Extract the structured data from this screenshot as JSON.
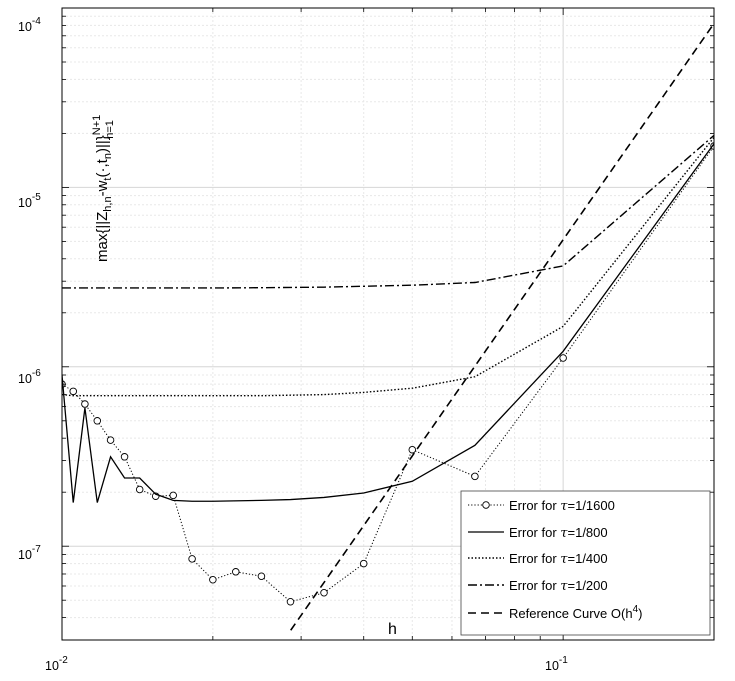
{
  "chart_data": {
    "type": "line",
    "xscale": "log",
    "yscale": "log",
    "xlim": [
      0.01,
      0.2
    ],
    "ylim": [
      3e-08,
      0.0001
    ],
    "grid": true,
    "xlabel": "h",
    "ylabel": "max{||Z_{h,n} - w_t(·,t_n)||}_{n=1}^{N+1}",
    "ylabel_parts": {
      "main": "max{||Z",
      "sub1": "h,n",
      "mid1": "-w",
      "sub2": "t",
      "mid2": "(·,t",
      "sub3": "n",
      "mid3": ")||}",
      "sup": "N+1",
      "sub4": "n=1"
    },
    "x_ticks": [
      {
        "base": "10",
        "exp": "-2"
      },
      {
        "base": "10",
        "exp": "-1"
      }
    ],
    "y_ticks": [
      {
        "base": "10",
        "exp": "-7"
      },
      {
        "base": "10",
        "exp": "-6"
      },
      {
        "base": "10",
        "exp": "-5"
      },
      {
        "base": "10",
        "exp": "-4"
      }
    ],
    "legend_position": "bottom-right",
    "series": [
      {
        "name": "Error for τ=1/1600",
        "label_prefix": "Error for ",
        "label_tau": "τ",
        "label_suffix": "=1/1600",
        "style": "dotted-circle",
        "x": [
          0.01,
          0.01053,
          0.01111,
          0.01176,
          0.0125,
          0.01333,
          0.01429,
          0.01538,
          0.01667,
          0.01818,
          0.02,
          0.02222,
          0.025,
          0.02857,
          0.03333,
          0.04,
          0.05,
          0.06667,
          0.1,
          0.2
        ],
        "y": [
          8e-07,
          7.3e-07,
          6.2e-07,
          5e-07,
          3.9e-07,
          3.15e-07,
          2.07e-07,
          1.9e-07,
          1.92e-07,
          8.5e-08,
          6.5e-08,
          7.2e-08,
          6.8e-08,
          4.9e-08,
          5.5e-08,
          8e-08,
          3.45e-07,
          2.45e-07,
          1.12e-06,
          1.7e-05
        ]
      },
      {
        "name": "Error for τ=1/800",
        "label_prefix": "Error for ",
        "label_tau": "τ",
        "label_suffix": "=1/800",
        "style": "solid",
        "x": [
          0.01,
          0.01053,
          0.01111,
          0.01176,
          0.0125,
          0.01333,
          0.01429,
          0.01538,
          0.01667,
          0.01818,
          0.02,
          0.025,
          0.02857,
          0.03333,
          0.04,
          0.05,
          0.06667,
          0.1,
          0.2
        ],
        "y": [
          9e-07,
          1.75e-07,
          5.9e-07,
          1.75e-07,
          3.15e-07,
          2.4e-07,
          2.4e-07,
          1.95e-07,
          1.8e-07,
          1.78e-07,
          1.78e-07,
          1.8e-07,
          1.82e-07,
          1.87e-07,
          1.98e-07,
          2.3e-07,
          3.65e-07,
          1.22e-06,
          1.75e-05
        ]
      },
      {
        "name": "Error for τ=1/400",
        "label_prefix": "Error for ",
        "label_tau": "τ",
        "label_suffix": "=1/400",
        "style": "dotted",
        "x": [
          0.01,
          0.01053,
          0.01111,
          0.0125,
          0.01667,
          0.02,
          0.025,
          0.03333,
          0.04,
          0.05,
          0.06667,
          0.1,
          0.2
        ],
        "y": [
          7e-07,
          6.9e-07,
          6.9e-07,
          6.9e-07,
          6.9e-07,
          6.9e-07,
          6.9e-07,
          7e-07,
          7.2e-07,
          7.6e-07,
          8.8e-07,
          1.68e-06,
          1.9e-05
        ]
      },
      {
        "name": "Error for τ=1/200",
        "label_prefix": "Error for ",
        "label_tau": "τ",
        "label_suffix": "=1/200",
        "style": "dashdot",
        "x": [
          0.01,
          0.0125,
          0.01667,
          0.02,
          0.025,
          0.03333,
          0.05,
          0.06667,
          0.1,
          0.2
        ],
        "y": [
          2.75e-06,
          2.75e-06,
          2.75e-06,
          2.75e-06,
          2.76e-06,
          2.78e-06,
          2.85e-06,
          2.95e-06,
          3.65e-06,
          1.95e-05
        ]
      },
      {
        "name": "Reference Curve O(h4)",
        "label_prefix": "Reference Curve O(h",
        "label_exp": "4",
        "label_suffix": ")",
        "style": "dashed",
        "x": [
          0.0286,
          0.2
        ],
        "y": [
          3.4e-08,
          8.2e-05
        ]
      }
    ]
  }
}
